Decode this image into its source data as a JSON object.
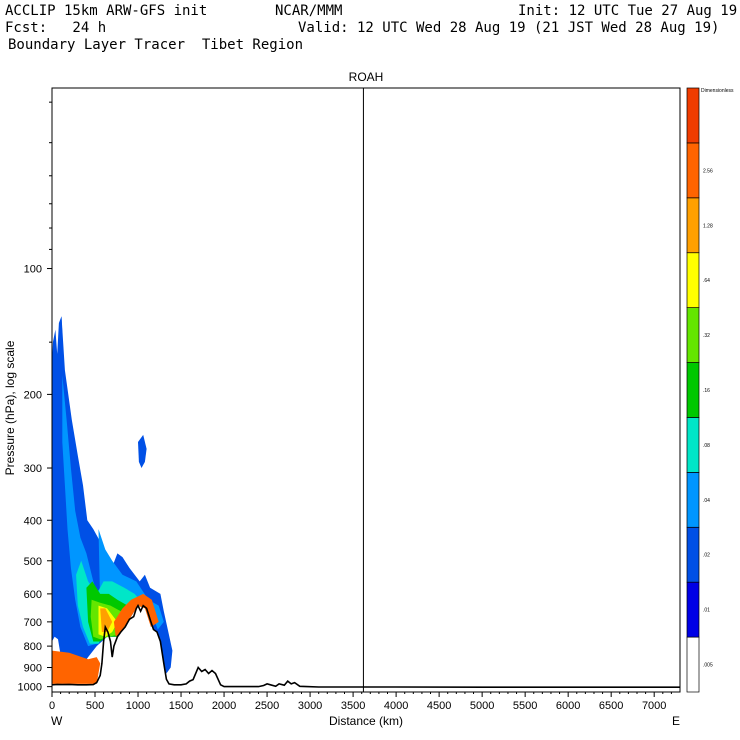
{
  "header": {
    "model": "ACCLIP 15km ARW-GFS init",
    "forecast": "Fcst:   24 h",
    "field": "Boundary Layer Tracer  Tibet Region",
    "center": "NCAR/MMM",
    "init": "Init: 12 UTC Tue 27 Aug 19",
    "valid": "Valid: 12 UTC Wed 28 Aug 19 (21 JST Wed 28 Aug 19)"
  },
  "chart_data": {
    "type": "heatmap",
    "title": "ROAH",
    "xlabel": "Distance (km)",
    "ylabel": "Pressure (hPa), log scale",
    "x_ticks": [
      0,
      500,
      1000,
      1500,
      2000,
      2500,
      3000,
      3500,
      4000,
      4500,
      5000,
      5500,
      6000,
      6500,
      7000
    ],
    "y_ticks": [
      100,
      200,
      300,
      400,
      500,
      600,
      700,
      800,
      900,
      1000
    ],
    "xlim": [
      0,
      7300
    ],
    "ylim_hPa": [
      1030,
      37
    ],
    "y_scale": "log",
    "left_end_label": "W",
    "right_end_label": "E",
    "marker_line_km": 3620,
    "colorbar": {
      "top_label": "Dimensionless",
      "levels": [
        ".005",
        ".01",
        ".02",
        ".04",
        ".08",
        ".16",
        ".32",
        ".64",
        "1.28",
        "2.56"
      ],
      "colors": [
        "#ffffff",
        "#0000e6",
        "#0050e6",
        "#0096ff",
        "#00e6c8",
        "#00c800",
        "#64e600",
        "#ffff00",
        "#ffa000",
        "#ff6400",
        "#f03c00"
      ]
    },
    "terrain_km_hPa": [
      [
        0,
        990
      ],
      [
        60,
        988
      ],
      [
        120,
        989
      ],
      [
        200,
        988
      ],
      [
        300,
        990
      ],
      [
        400,
        990
      ],
      [
        480,
        989
      ],
      [
        520,
        978
      ],
      [
        560,
        940
      ],
      [
        580,
        880
      ],
      [
        600,
        780
      ],
      [
        620,
        720
      ],
      [
        650,
        740
      ],
      [
        680,
        780
      ],
      [
        700,
        850
      ],
      [
        720,
        800
      ],
      [
        760,
        760
      ],
      [
        800,
        740
      ],
      [
        850,
        720
      ],
      [
        900,
        690
      ],
      [
        950,
        680
      ],
      [
        980,
        650
      ],
      [
        1000,
        640
      ],
      [
        1030,
        660
      ],
      [
        1060,
        640
      ],
      [
        1100,
        650
      ],
      [
        1150,
        700
      ],
      [
        1180,
        730
      ],
      [
        1220,
        740
      ],
      [
        1260,
        780
      ],
      [
        1300,
        880
      ],
      [
        1330,
        960
      ],
      [
        1360,
        985
      ],
      [
        1420,
        990
      ],
      [
        1500,
        990
      ],
      [
        1560,
        985
      ],
      [
        1600,
        970
      ],
      [
        1640,
        962
      ],
      [
        1700,
        900
      ],
      [
        1740,
        920
      ],
      [
        1780,
        910
      ],
      [
        1820,
        930
      ],
      [
        1860,
        915
      ],
      [
        1900,
        930
      ],
      [
        1960,
        990
      ],
      [
        2000,
        1000
      ],
      [
        2100,
        1000
      ],
      [
        2400,
        1000
      ],
      [
        2460,
        994
      ],
      [
        2500,
        985
      ],
      [
        2540,
        990
      ],
      [
        2600,
        998
      ],
      [
        2640,
        985
      ],
      [
        2700,
        992
      ],
      [
        2740,
        970
      ],
      [
        2780,
        985
      ],
      [
        2820,
        978
      ],
      [
        2880,
        998
      ],
      [
        2960,
        1000
      ],
      [
        3100,
        1002
      ],
      [
        4000,
        1002
      ],
      [
        5000,
        1003
      ],
      [
        6000,
        1003
      ],
      [
        7300,
        1003
      ]
    ],
    "tracer_layers": [
      {
        "level": ".01",
        "polygon_km_hPa": [
          [
            0,
            840
          ],
          [
            0,
            780
          ],
          [
            30,
            760
          ],
          [
            70,
            770
          ],
          [
            100,
            840
          ],
          [
            140,
            900
          ],
          [
            180,
            960
          ],
          [
            300,
            920
          ],
          [
            420,
            850
          ],
          [
            520,
            800
          ],
          [
            530,
            760
          ],
          [
            480,
            750
          ],
          [
            450,
            660
          ],
          [
            400,
            580
          ],
          [
            340,
            500
          ],
          [
            280,
            430
          ],
          [
            230,
            370
          ],
          [
            200,
            310
          ],
          [
            160,
            240
          ],
          [
            130,
            160
          ],
          [
            110,
            130
          ],
          [
            80,
            135
          ],
          [
            60,
            160
          ],
          [
            40,
            140
          ],
          [
            10,
            150
          ],
          [
            0,
            170
          ],
          [
            0,
            300
          ],
          [
            0,
            200
          ],
          [
            -1,
            200
          ]
        ]
      },
      {
        "level": ".01",
        "polygon_km_hPa": [
          [
            110,
            130
          ],
          [
            150,
            175
          ],
          [
            230,
            230
          ],
          [
            300,
            280
          ],
          [
            360,
            330
          ],
          [
            410,
            400
          ],
          [
            480,
            420
          ],
          [
            560,
            450
          ],
          [
            620,
            510
          ],
          [
            680,
            530
          ],
          [
            760,
            480
          ],
          [
            820,
            490
          ],
          [
            900,
            520
          ],
          [
            1020,
            560
          ],
          [
            1080,
            540
          ],
          [
            1140,
            580
          ],
          [
            1260,
            600
          ],
          [
            1300,
            660
          ],
          [
            1400,
            820
          ],
          [
            1380,
            900
          ],
          [
            1330,
            930
          ],
          [
            1300,
            880
          ],
          [
            1260,
            780
          ],
          [
            1220,
            740
          ],
          [
            1180,
            730
          ],
          [
            1100,
            650
          ],
          [
            1000,
            640
          ],
          [
            900,
            690
          ],
          [
            760,
            760
          ],
          [
            640,
            760
          ],
          [
            520,
            800
          ],
          [
            420,
            700
          ],
          [
            360,
            620
          ],
          [
            300,
            540
          ],
          [
            250,
            460
          ],
          [
            200,
            360
          ],
          [
            160,
            260
          ],
          [
            120,
            190
          ],
          [
            90,
            150
          ]
        ]
      },
      {
        "level": ".02",
        "polygon_km_hPa": [
          [
            120,
            180
          ],
          [
            170,
            230
          ],
          [
            220,
            300
          ],
          [
            270,
            380
          ],
          [
            330,
            440
          ],
          [
            400,
            480
          ],
          [
            480,
            560
          ],
          [
            560,
            640
          ],
          [
            520,
            790
          ],
          [
            420,
            800
          ],
          [
            330,
            720
          ],
          [
            270,
            620
          ],
          [
            220,
            520
          ],
          [
            180,
            420
          ],
          [
            150,
            330
          ],
          [
            120,
            260
          ]
        ]
      },
      {
        "level": ".02",
        "polygon_km_hPa": [
          [
            540,
            420
          ],
          [
            620,
            470
          ],
          [
            700,
            500
          ],
          [
            820,
            540
          ],
          [
            980,
            560
          ],
          [
            1120,
            620
          ],
          [
            1240,
            640
          ],
          [
            1300,
            700
          ],
          [
            1230,
            730
          ],
          [
            1120,
            640
          ],
          [
            1000,
            630
          ],
          [
            860,
            700
          ],
          [
            740,
            760
          ],
          [
            620,
            740
          ],
          [
            560,
            640
          ]
        ]
      },
      {
        "level": ".04",
        "polygon_km_hPa": [
          [
            280,
            540
          ],
          [
            340,
            500
          ],
          [
            420,
            560
          ],
          [
            520,
            600
          ],
          [
            600,
            560
          ],
          [
            700,
            560
          ],
          [
            840,
            580
          ],
          [
            960,
            600
          ],
          [
            1080,
            640
          ],
          [
            1180,
            700
          ],
          [
            1100,
            650
          ],
          [
            980,
            640
          ],
          [
            860,
            700
          ],
          [
            740,
            760
          ],
          [
            620,
            740
          ],
          [
            540,
            790
          ],
          [
            440,
            790
          ],
          [
            360,
            720
          ],
          [
            300,
            640
          ]
        ]
      },
      {
        "level": ".08",
        "polygon_km_hPa": [
          [
            400,
            580
          ],
          [
            470,
            560
          ],
          [
            560,
            600
          ],
          [
            660,
            600
          ],
          [
            760,
            620
          ],
          [
            880,
            640
          ],
          [
            980,
            650
          ],
          [
            1060,
            680
          ],
          [
            980,
            650
          ],
          [
            880,
            690
          ],
          [
            760,
            760
          ],
          [
            640,
            760
          ],
          [
            560,
            780
          ],
          [
            480,
            780
          ],
          [
            420,
            700
          ]
        ]
      },
      {
        "level": ".16",
        "polygon_km_hPa": [
          [
            460,
            620
          ],
          [
            560,
            630
          ],
          [
            680,
            640
          ],
          [
            800,
            660
          ],
          [
            900,
            690
          ],
          [
            780,
            750
          ],
          [
            660,
            760
          ],
          [
            560,
            770
          ],
          [
            480,
            760
          ],
          [
            450,
            680
          ]
        ]
      },
      {
        "level": ".32",
        "polygon_km_hPa": [
          [
            540,
            640
          ],
          [
            640,
            650
          ],
          [
            760,
            700
          ],
          [
            700,
            740
          ],
          [
            620,
            760
          ],
          [
            540,
            750
          ]
        ]
      },
      {
        "level": ".64",
        "polygon_km_hPa": [
          [
            560,
            650
          ],
          [
            620,
            650
          ],
          [
            700,
            700
          ],
          [
            640,
            740
          ],
          [
            580,
            740
          ]
        ]
      },
      {
        "level": "1.28",
        "polygon_km_hPa": [
          [
            0,
            820
          ],
          [
            200,
            830
          ],
          [
            420,
            860
          ],
          [
            520,
            850
          ],
          [
            560,
            880
          ],
          [
            520,
            985
          ],
          [
            300,
            985
          ],
          [
            100,
            985
          ],
          [
            0,
            985
          ]
        ]
      },
      {
        "level": "1.28",
        "polygon_km_hPa": [
          [
            720,
            700
          ],
          [
            820,
            650
          ],
          [
            920,
            620
          ],
          [
            1060,
            600
          ],
          [
            1160,
            620
          ],
          [
            1240,
            700
          ],
          [
            1150,
            720
          ],
          [
            1080,
            650
          ],
          [
            1000,
            640
          ],
          [
            900,
            690
          ],
          [
            800,
            740
          ],
          [
            740,
            760
          ]
        ]
      },
      {
        "level": ".01",
        "polygon_km_hPa": [
          [
            1000,
            260
          ],
          [
            1060,
            250
          ],
          [
            1100,
            270
          ],
          [
            1080,
            290
          ],
          [
            1040,
            300
          ],
          [
            1010,
            290
          ]
        ]
      },
      {
        "level": ".02",
        "polygon_km_hPa": [
          [
            150,
            250
          ],
          [
            180,
            260
          ],
          [
            200,
            300
          ],
          [
            170,
            330
          ],
          [
            150,
            300
          ]
        ]
      }
    ]
  }
}
